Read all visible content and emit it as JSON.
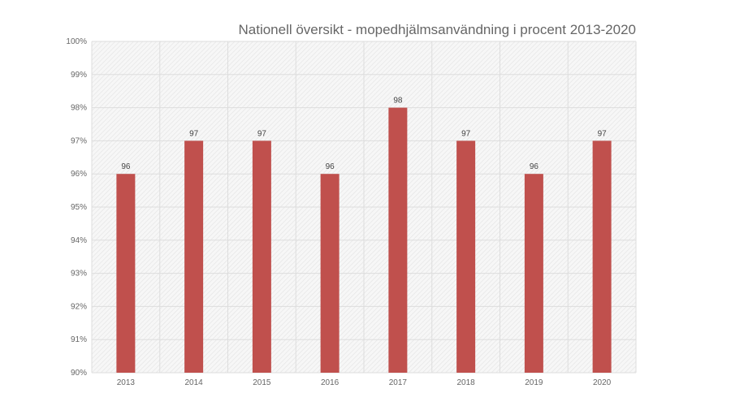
{
  "chart_data": {
    "type": "bar",
    "title": "Nationell översikt - mopedhjälmsanvändning i procent 2013-2020",
    "categories": [
      "2013",
      "2014",
      "2015",
      "2016",
      "2017",
      "2018",
      "2019",
      "2020"
    ],
    "values": [
      96,
      97,
      97,
      96,
      98,
      97,
      96,
      97
    ],
    "data_labels": [
      "96",
      "97",
      "97",
      "96",
      "98",
      "97",
      "96",
      "97"
    ],
    "xlabel": "",
    "ylabel": "",
    "ylim": [
      90,
      100
    ],
    "yticks": [
      "90%",
      "91%",
      "92%",
      "93%",
      "94%",
      "95%",
      "96%",
      "97%",
      "98%",
      "99%",
      "100%"
    ],
    "grid": true,
    "bar_color": "#c0504d"
  }
}
